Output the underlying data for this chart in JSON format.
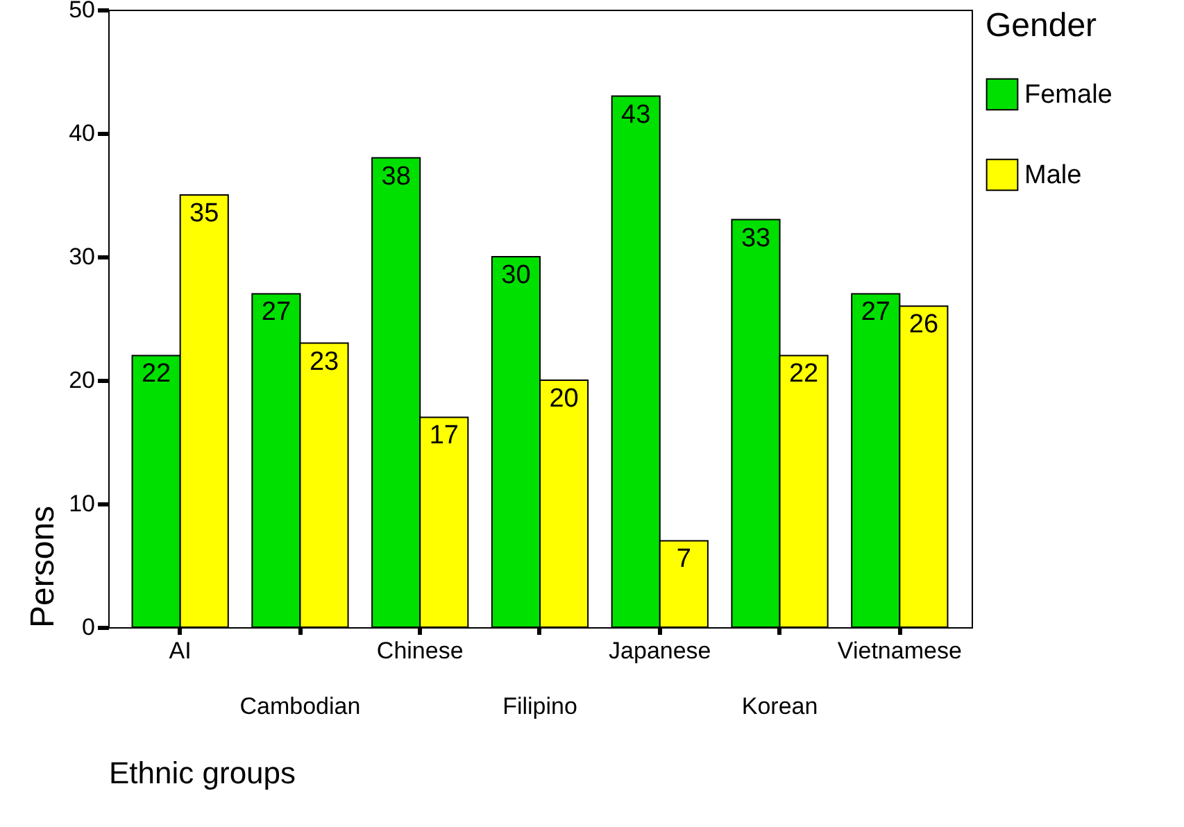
{
  "chart_data": {
    "type": "bar",
    "xlabel": "Ethnic groups",
    "ylabel": "Persons",
    "legend_title": "Gender",
    "categories": [
      "AI",
      "Cambodian",
      "Chinese",
      "Filipino",
      "Japanese",
      "Korean",
      "Vietnamese"
    ],
    "series": [
      {
        "name": "Female",
        "color": "#00e000",
        "values": [
          22,
          27,
          38,
          30,
          43,
          33,
          27
        ]
      },
      {
        "name": "Male",
        "color": "#ffff00",
        "values": [
          35,
          23,
          17,
          20,
          7,
          22,
          26
        ]
      }
    ],
    "ylim": [
      0,
      50
    ],
    "yticks": [
      0,
      10,
      20,
      30,
      40,
      50
    ],
    "data_labels": true,
    "legend": "right",
    "grid": false
  }
}
